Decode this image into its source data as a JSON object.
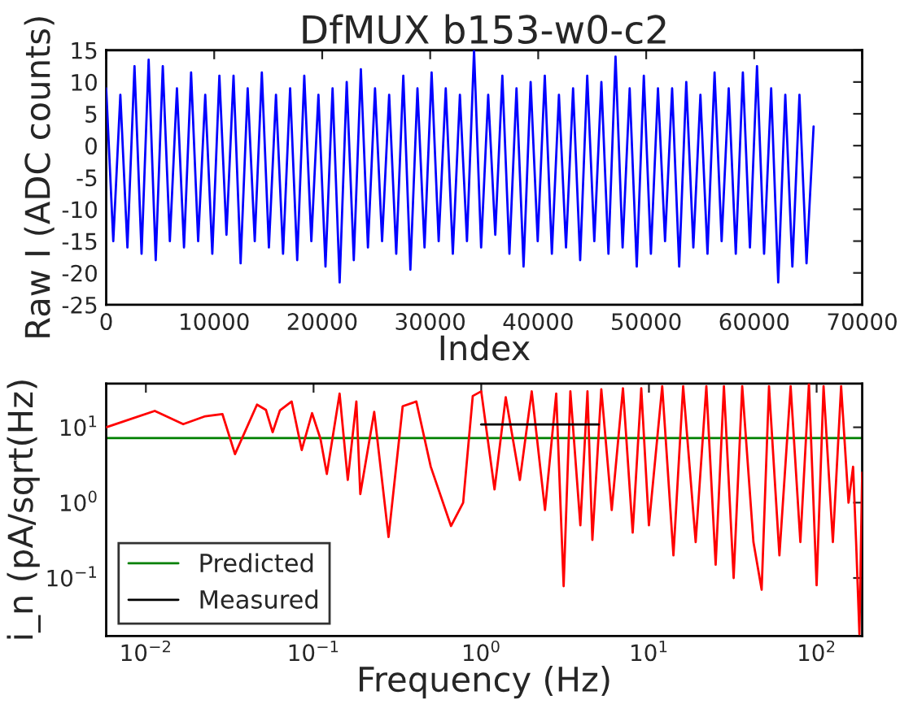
{
  "chart_data": [
    {
      "type": "line",
      "title": "DfMUX b153-w0-c2",
      "xlabel": "Index",
      "ylabel": "Raw I (ADC counts)",
      "xlim": [
        0,
        70000
      ],
      "xticks": [
        0,
        10000,
        20000,
        30000,
        40000,
        50000,
        60000,
        70000
      ],
      "ylim": [
        -25,
        15
      ],
      "yticks": [
        -25,
        -20,
        -15,
        -10,
        -5,
        0,
        5,
        10,
        15
      ],
      "grid": false,
      "legend": false,
      "x": [
        0,
        655,
        1310,
        1965,
        2620,
        3275,
        3930,
        4585,
        5240,
        5895,
        6550,
        7205,
        7860,
        8515,
        9170,
        9825,
        10480,
        11135,
        11790,
        12445,
        13100,
        13755,
        14410,
        15065,
        15720,
        16375,
        17030,
        17685,
        18340,
        18995,
        19650,
        20305,
        20960,
        21615,
        22270,
        22925,
        23580,
        24235,
        24890,
        25545,
        26200,
        26855,
        27510,
        28165,
        28820,
        29475,
        30130,
        30785,
        31440,
        32095,
        32750,
        33405,
        34060,
        34715,
        35370,
        36025,
        36680,
        37335,
        37990,
        38645,
        39300,
        39955,
        40610,
        41265,
        41920,
        42575,
        43230,
        43885,
        44540,
        45195,
        45850,
        46505,
        47160,
        47815,
        48470,
        49125,
        49780,
        50435,
        51090,
        51745,
        52400,
        53055,
        53710,
        54365,
        55020,
        55675,
        56330,
        56985,
        57640,
        58295,
        58950,
        59605,
        60260,
        60915,
        61570,
        62225,
        62880,
        63535,
        64190,
        64845,
        65500
      ],
      "series": [
        {
          "color": "#0000ff",
          "values": [
            9,
            -15,
            8,
            -16,
            12.5,
            -17,
            13.5,
            -18,
            12.5,
            -15,
            9,
            -16,
            11.5,
            -15,
            8,
            -17,
            11,
            -14,
            11,
            -18.5,
            9,
            -15,
            11.5,
            -16,
            8,
            -17,
            9,
            -18,
            11,
            -15,
            8,
            -19,
            9,
            -21.5,
            10,
            -18,
            12,
            -16,
            9,
            -15,
            8,
            -17,
            11,
            -19.5,
            9,
            -16,
            11.5,
            -15,
            9,
            -17,
            8,
            -15,
            15,
            -16,
            8,
            -14,
            11,
            -17,
            9,
            -19,
            10,
            -15,
            11,
            -17,
            8,
            -16,
            9,
            -18,
            11,
            -15,
            10,
            -17,
            14,
            -16,
            9,
            -19,
            11,
            -17,
            9,
            -15,
            9,
            -19,
            10,
            -16,
            8,
            -17,
            11.5,
            -15,
            9,
            -17,
            11.5,
            -16,
            12.5,
            -17,
            9,
            -21.5,
            8,
            -19,
            8,
            -18.5,
            3
          ]
        }
      ]
    },
    {
      "type": "line",
      "xlabel": "Frequency (Hz)",
      "ylabel": "i_n (pA/sqrt(Hz)",
      "log": "xy",
      "xlim": [
        0.0058,
        187
      ],
      "xticks": [
        {
          "value": 0.01,
          "label": "10$^{−2}$"
        },
        {
          "value": 0.1,
          "label": "10$^{−1}$"
        },
        {
          "value": 1,
          "label": "10$^{0}$"
        },
        {
          "value": 10,
          "label": "10$^{1}$"
        },
        {
          "value": 100,
          "label": "10$^{2}$"
        }
      ],
      "ylim": [
        0.017,
        38
      ],
      "yticks": [
        {
          "value": 0.1,
          "label": "10$^{−1}$"
        },
        {
          "value": 1,
          "label": "10$^{0}$"
        },
        {
          "value": 10,
          "label": "10$^{1}$"
        }
      ],
      "grid": false,
      "legend": "bottom left",
      "ref_lines": [
        {
          "axis": "y",
          "value": 7.2,
          "label": "Predicted",
          "color": "#008000"
        }
      ],
      "series": [
        {
          "color": "#ff0000",
          "x": [
            0.0058,
            0.0113,
            0.0167,
            0.0226,
            0.0286,
            0.034,
            0.046,
            0.052,
            0.057,
            0.063,
            0.074,
            0.085,
            0.098,
            0.11,
            0.12,
            0.143,
            0.16,
            0.18,
            0.19,
            0.23,
            0.28,
            0.34,
            0.41,
            0.5,
            0.66,
            0.78,
            0.89,
            1.0,
            1.2,
            1.4,
            1.7,
            2.0,
            2.4,
            2.8,
            3.1,
            3.4,
            3.9,
            4.3,
            4.6,
            5.2,
            6,
            7,
            8,
            9,
            10,
            12,
            14,
            16,
            19,
            22,
            25,
            28,
            32,
            36,
            42,
            47,
            52,
            60,
            70,
            80,
            90,
            100,
            110,
            125,
            140,
            155,
            165,
            172,
            180,
            187
          ],
          "values": [
            10,
            16.5,
            11,
            14,
            15,
            4.4,
            20,
            17,
            8.6,
            16.7,
            22,
            5,
            15.4,
            7,
            2.4,
            28,
            2,
            22,
            1.3,
            16,
            0.35,
            19,
            22,
            3,
            0.49,
            1,
            26,
            30,
            1.5,
            25,
            2,
            30,
            0.8,
            28,
            0.078,
            30,
            0.5,
            30,
            0.32,
            32,
            0.8,
            33,
            0.4,
            33,
            0.5,
            35,
            0.2,
            35,
            0.3,
            35,
            0.15,
            35,
            0.1,
            35,
            0.3,
            0.07,
            35,
            0.2,
            35,
            0.3,
            38,
            0.08,
            35,
            0.3,
            35,
            1,
            3,
            0.3,
            0.018,
            2.5
          ]
        },
        {
          "name": "Measured",
          "color": "#000000",
          "x": [
            1,
            5
          ],
          "values": [
            10.9,
            10.9
          ]
        }
      ]
    }
  ]
}
